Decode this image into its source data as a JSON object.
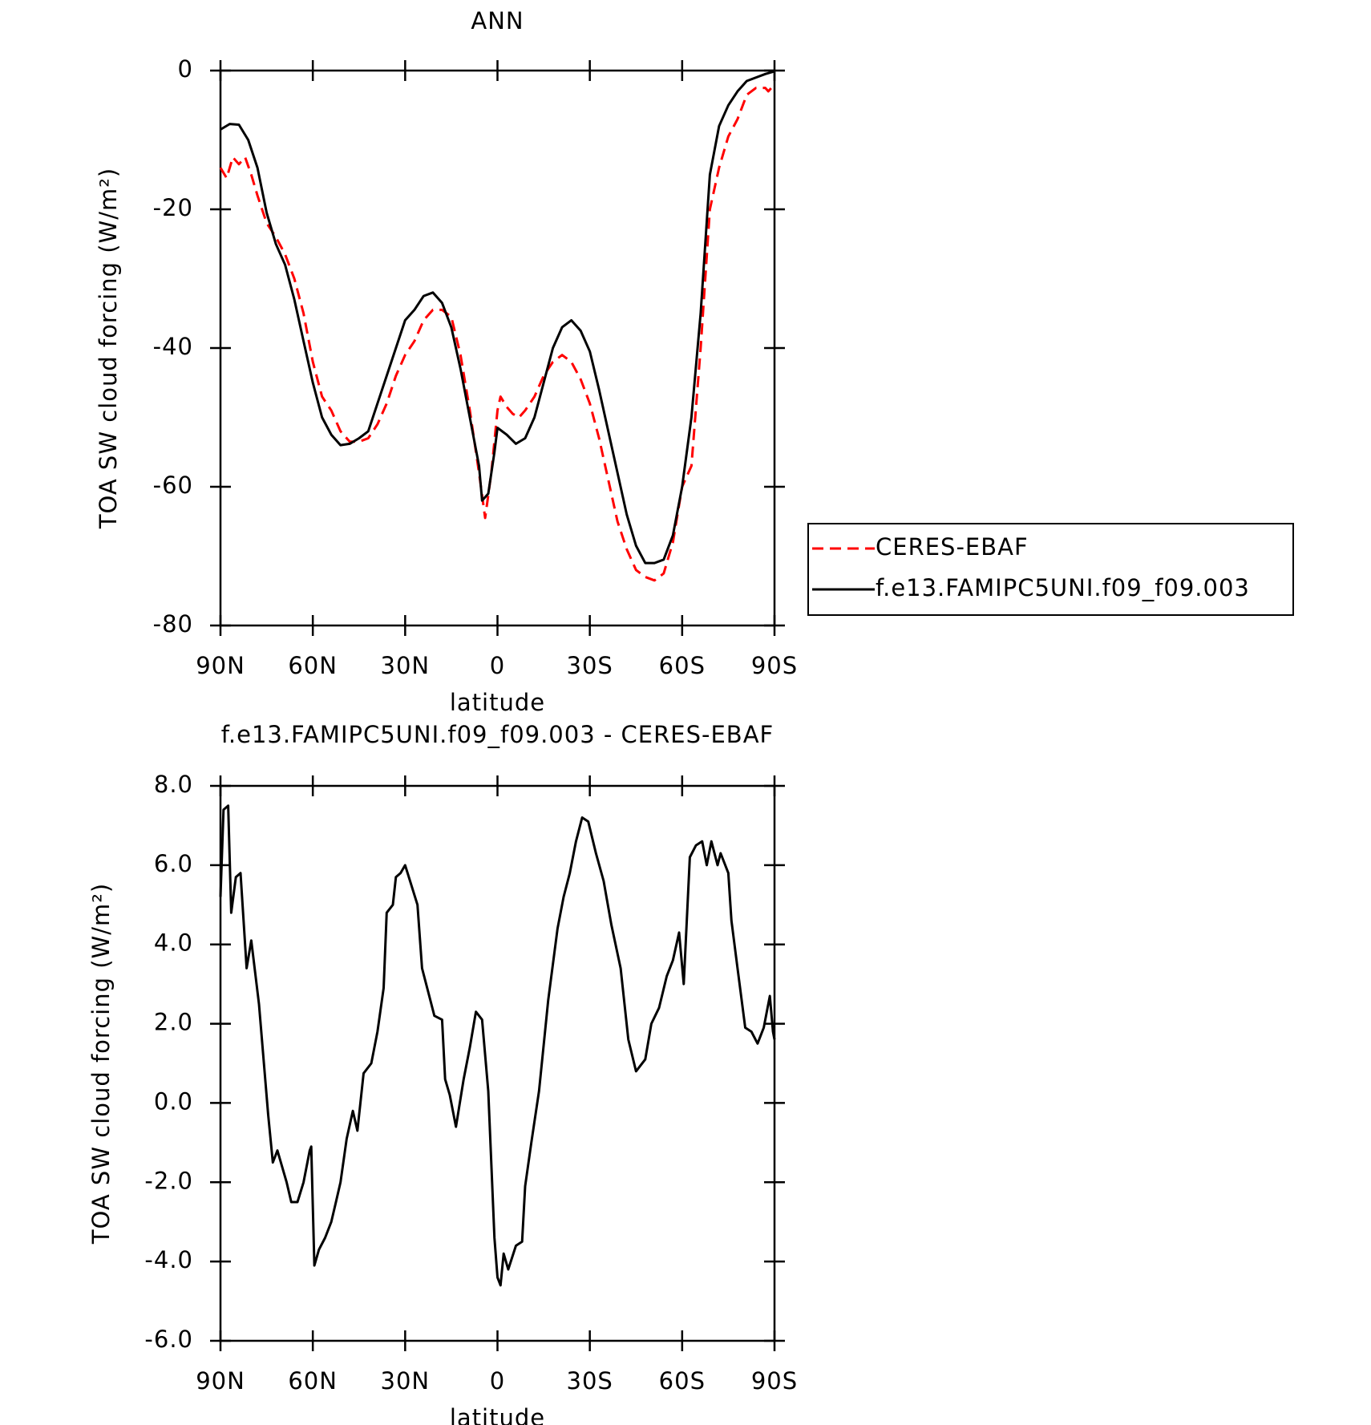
{
  "chart_data": [
    {
      "type": "line",
      "title": "ANN",
      "xlabel": "latitude",
      "ylabel": "TOA SW cloud forcing (W/m²)",
      "xlim": [
        90,
        -90
      ],
      "ylim": [
        -80,
        0
      ],
      "xticks": [
        {
          "value": 90,
          "label": "90N"
        },
        {
          "value": 60,
          "label": "60N"
        },
        {
          "value": 30,
          "label": "30N"
        },
        0,
        {
          "value": -30,
          "label": "30S"
        },
        {
          "value": -60,
          "label": "60S"
        },
        {
          "value": -90,
          "label": "90S"
        }
      ],
      "yticks": [
        -80,
        -60,
        -40,
        -20,
        0
      ],
      "legend": "right",
      "series": [
        {
          "name": "CERES-EBAF",
          "color": "#ff0000",
          "line_style": "dashed",
          "x": [
            90,
            88,
            86,
            84,
            82,
            80,
            78,
            75,
            72,
            69,
            66,
            63,
            60,
            57,
            54,
            51,
            48,
            45,
            42,
            39,
            36,
            33,
            30,
            27,
            24,
            21,
            18,
            15,
            12,
            9,
            6,
            4,
            2,
            0,
            -1,
            -3,
            -5,
            -7,
            -9,
            -12,
            -15,
            -18,
            -21,
            -24,
            -27,
            -30,
            -33,
            -36,
            -39,
            -42,
            -45,
            -48,
            -51,
            -54,
            -57,
            -60,
            -63,
            -66,
            -69,
            -72,
            -75,
            -78,
            -81,
            -84,
            -87,
            -88,
            -90
          ],
          "values": [
            -14,
            -15.5,
            -12.5,
            -13.5,
            -12.5,
            -15,
            -18,
            -22,
            -24,
            -26.5,
            -30,
            -35,
            -42,
            -47,
            -49,
            -52,
            -53.5,
            -53.5,
            -53,
            -51,
            -48,
            -44,
            -41,
            -39,
            -36,
            -34.5,
            -34.5,
            -35.5,
            -41,
            -49,
            -58,
            -64.5,
            -58,
            -49,
            -47,
            -48.5,
            -49.5,
            -50,
            -49,
            -47,
            -44,
            -42,
            -41,
            -42,
            -44.5,
            -48,
            -53,
            -59,
            -65,
            -69,
            -72,
            -73,
            -73.5,
            -72.5,
            -68,
            -60,
            -57,
            -40,
            -20,
            -14,
            -9.5,
            -7,
            -3.5,
            -2.5,
            -2.5,
            -3,
            -2
          ]
        },
        {
          "name": "f.e13.FAMIPC5UNI.f09_f09.003",
          "color": "#000000",
          "line_style": "solid",
          "x": [
            90,
            87,
            84,
            81,
            78,
            75,
            72,
            69,
            66,
            63,
            60,
            57,
            54,
            51,
            48,
            45,
            42,
            39,
            36,
            33,
            30,
            27,
            24,
            21,
            18,
            15,
            12,
            9,
            6,
            5,
            3,
            1,
            0,
            -3,
            -6,
            -9,
            -12,
            -15,
            -18,
            -21,
            -24,
            -27,
            -30,
            -33,
            -36,
            -39,
            -42,
            -45,
            -48,
            -51,
            -54,
            -57,
            -60,
            -63,
            -66,
            -69,
            -72,
            -75,
            -78,
            -81,
            -84,
            -87,
            -90
          ],
          "values": [
            -8.5,
            -7.7,
            -7.8,
            -10,
            -14,
            -20.5,
            -25,
            -28,
            -33,
            -39,
            -45,
            -50,
            -52.5,
            -54,
            -53.8,
            -53,
            -52,
            -48,
            -44,
            -40,
            -36,
            -34.5,
            -32.5,
            -32,
            -33.5,
            -37,
            -43,
            -50,
            -57,
            -62,
            -61,
            -55,
            -51.5,
            -52.5,
            -53.8,
            -53,
            -50,
            -45,
            -40,
            -37,
            -36,
            -37.5,
            -40.5,
            -46,
            -52,
            -58,
            -64,
            -68.5,
            -71,
            -71,
            -70.5,
            -67,
            -60,
            -50,
            -35,
            -15,
            -8,
            -5,
            -3,
            -1.5,
            -1,
            -0.5,
            -0.1
          ]
        }
      ]
    },
    {
      "type": "line",
      "title": "f.e13.FAMIPC5UNI.f09_f09.003 - CERES-EBAF",
      "xlabel": "latitude",
      "ylabel": "TOA SW cloud forcing (W/m²)",
      "xlim": [
        90,
        -90
      ],
      "ylim": [
        -6,
        8
      ],
      "xticks": [
        {
          "value": 90,
          "label": "90N"
        },
        {
          "value": 60,
          "label": "60N"
        },
        {
          "value": 30,
          "label": "30N"
        },
        0,
        {
          "value": -30,
          "label": "30S"
        },
        {
          "value": -60,
          "label": "60S"
        },
        {
          "value": -90,
          "label": "90S"
        }
      ],
      "yticks": [
        {
          "value": -6,
          "label": "-6.0"
        },
        {
          "value": -4,
          "label": "-4.0"
        },
        {
          "value": -2,
          "label": "-2.0"
        },
        {
          "value": 0,
          "label": "0.0"
        },
        {
          "value": 2,
          "label": "2.0"
        },
        {
          "value": 4,
          "label": "4.0"
        },
        {
          "value": 6,
          "label": "6.0"
        },
        {
          "value": 8,
          "label": "8.0"
        }
      ],
      "color": "#000000",
      "x": [
        90,
        89,
        87.5,
        86.5,
        85,
        83.5,
        81.5,
        80,
        77.5,
        74.5,
        73,
        71.5,
        68.5,
        67,
        65,
        63,
        61,
        60.5,
        59.5,
        58,
        56,
        54,
        52.5,
        51,
        49,
        47,
        45.5,
        43.5,
        41,
        39,
        37,
        36,
        34,
        33,
        31.5,
        30,
        28,
        26,
        24.5,
        22.5,
        20.5,
        18,
        17,
        15.5,
        13.5,
        11,
        9,
        7,
        5,
        3,
        1,
        0,
        -1,
        -2,
        -3.5,
        -6,
        -8,
        -9,
        -11,
        -13.5,
        -16.5,
        -19.5,
        -21.5,
        -23.5,
        -25.5,
        -27.5,
        -29.5,
        -32,
        -34.5,
        -37,
        -40,
        -42.5,
        -45,
        -48,
        -50,
        -52.5,
        -55,
        -57,
        -59,
        -60.5,
        -62.5,
        -64.5,
        -66.5,
        -68,
        -69.5,
        -71.5,
        -72.5,
        -75,
        -76,
        -78,
        -80.5,
        -82.5,
        -84.5,
        -86.5,
        -88.5,
        -89.5,
        -90
      ],
      "values": [
        5.2,
        7.4,
        7.5,
        4.8,
        5.7,
        5.8,
        3.4,
        4.1,
        2.5,
        -0.3,
        -1.5,
        -1.2,
        -2,
        -2.5,
        -2.5,
        -2,
        -1.2,
        -1.1,
        -4.1,
        -3.7,
        -3.4,
        -3,
        -2.5,
        -2,
        -0.9,
        -0.2,
        -0.7,
        0.75,
        1,
        1.8,
        2.9,
        4.8,
        5,
        5.7,
        5.8,
        6,
        5.5,
        5,
        3.4,
        2.8,
        2.2,
        2.1,
        0.6,
        0.2,
        -0.6,
        0.6,
        1.4,
        2.3,
        2.1,
        0.3,
        -3.4,
        -4.4,
        -4.6,
        -3.8,
        -4.2,
        -3.6,
        -3.5,
        -2.1,
        -1,
        0.3,
        2.6,
        4.4,
        5.2,
        5.8,
        6.6,
        7.2,
        7.1,
        6.3,
        5.6,
        4.5,
        3.4,
        1.6,
        0.8,
        1.1,
        2,
        2.4,
        3.2,
        3.6,
        4.3,
        3,
        6.2,
        6.5,
        6.6,
        6,
        6.6,
        6,
        6.3,
        5.8,
        4.6,
        3.4,
        1.9,
        1.8,
        1.5,
        1.9,
        2.7,
        1.8,
        1.6
      ]
    }
  ]
}
